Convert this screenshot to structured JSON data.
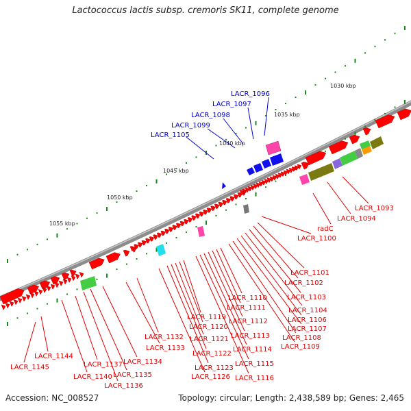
{
  "title": "Lactococcus lactis subsp. cremoris SK11, complete genome",
  "footer": {
    "accession": "Accession: NC_008527",
    "stats": "Topology: circular; Length: 2,438,589 bp; Genes: 2,465"
  },
  "colors": {
    "backbone": "#8c8c8c",
    "tick": "#1a8a1a",
    "gene_default": "#ff0000",
    "label_outer": "#0000cc",
    "label_inner": "#dd0000"
  },
  "ticks": [
    "1030 kbp",
    "1035 kbp",
    "1040 kbp",
    "1045 kbp",
    "1050 kbp",
    "1055 kbp"
  ],
  "labels_outer": [
    "LACR_1096",
    "LACR_1097",
    "LACR_1098",
    "LACR_1099",
    "LACR_1105"
  ],
  "labels_inner": [
    "LACR_1093",
    "LACR_1094",
    "radC",
    "LACR_1100",
    "LACR_1101",
    "LACR_1102",
    "LACR_1103",
    "LACR_1104",
    "LACR_1106",
    "LACR_1107",
    "LACR_1108",
    "LACR_1109",
    "LACR_1110",
    "LACR_1111",
    "LACR_1112",
    "LACR_1113",
    "LACR_1114",
    "LACR_1115",
    "LACR_1116",
    "LACR_1119",
    "LACR_1120",
    "LACR_1121",
    "LACR_1122",
    "LACR_1123",
    "LACR_1126",
    "LACR_1132",
    "LACR_1133",
    "LACR_1134",
    "LACR_1135",
    "LACR_1136",
    "LACR_1137",
    "LACR_1140",
    "LACR_1144",
    "LACR_1145"
  ]
}
